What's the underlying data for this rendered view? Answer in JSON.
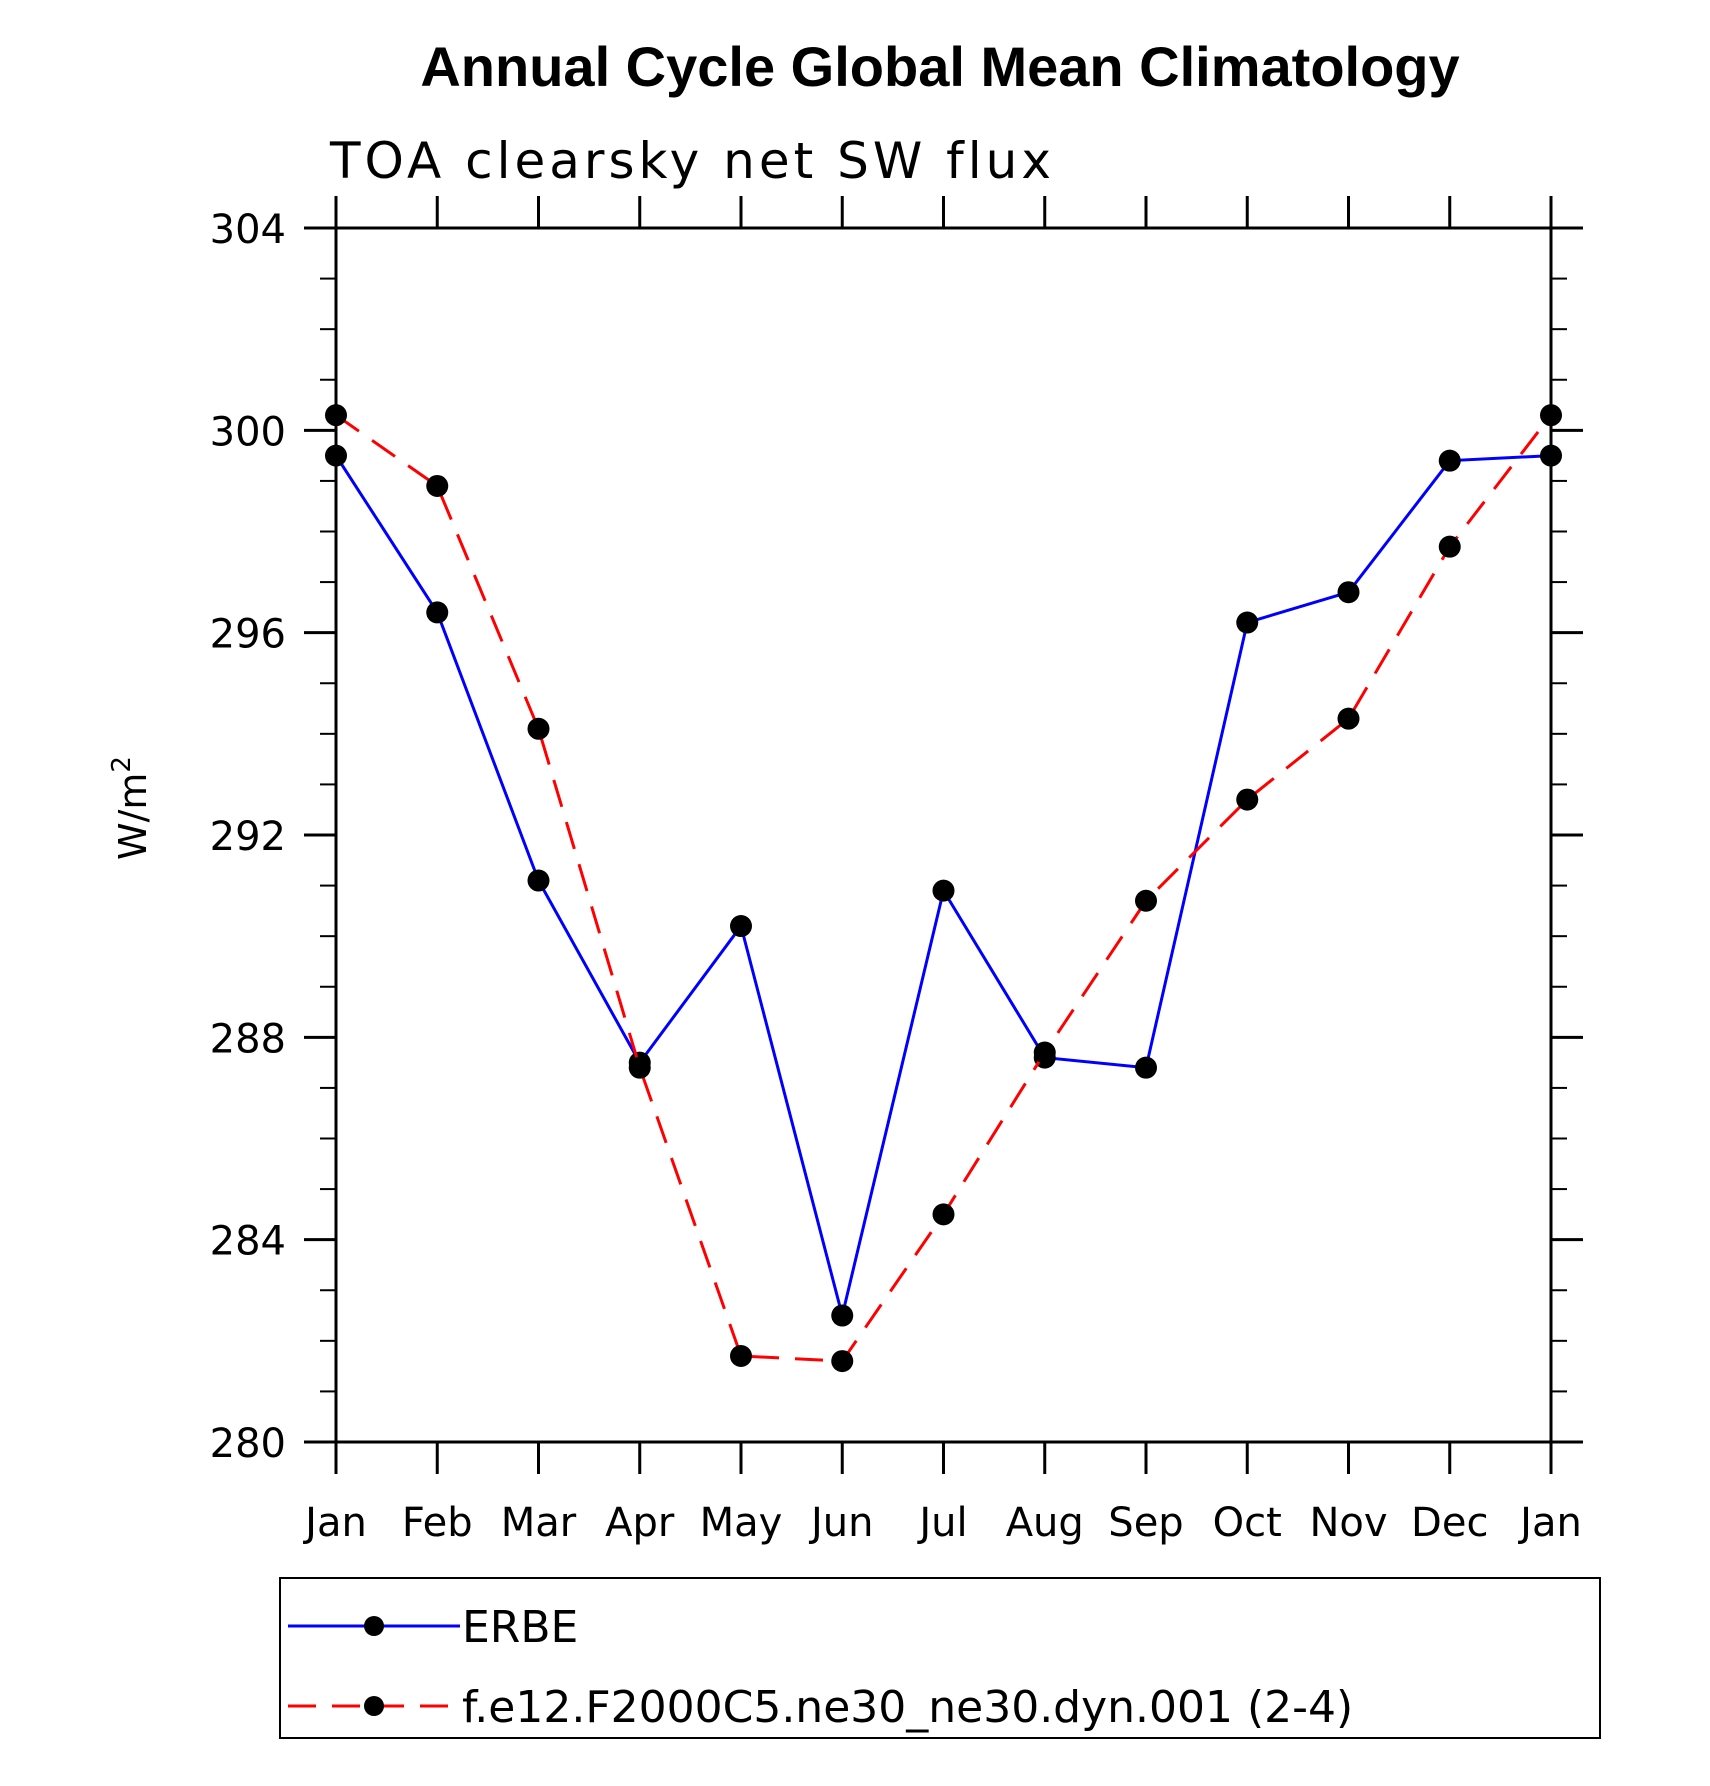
{
  "chart_data": {
    "type": "line",
    "title": "Annual Cycle Global Mean Climatology",
    "subtitle": "TOA clearsky net SW flux",
    "ylabel": "W/m",
    "ylabel_sup": "2",
    "xlabel": "",
    "categories": [
      "Jan",
      "Feb",
      "Mar",
      "Apr",
      "May",
      "Jun",
      "Jul",
      "Aug",
      "Sep",
      "Oct",
      "Nov",
      "Dec",
      "Jan"
    ],
    "ylim": [
      280,
      304
    ],
    "yticks": [
      280,
      284,
      288,
      292,
      296,
      300,
      304
    ],
    "y_minor_step": 1,
    "grid": false,
    "legend_position": "bottom",
    "series": [
      {
        "name": "ERBE",
        "color": "#0000ff",
        "dash": "solid",
        "marker": "filled-circle",
        "values": [
          299.5,
          296.4,
          291.1,
          287.5,
          290.2,
          282.5,
          290.9,
          287.6,
          287.4,
          296.2,
          296.8,
          299.4,
          299.5
        ]
      },
      {
        "name": "f.e12.F2000C5.ne30_ne30.dyn.001 (2-4)",
        "color": "#ff0000",
        "dash": "dashed",
        "marker": "filled-circle",
        "values": [
          300.3,
          298.9,
          294.1,
          287.4,
          281.7,
          281.6,
          284.5,
          287.7,
          290.7,
          292.7,
          294.3,
          297.7,
          300.3
        ]
      }
    ]
  }
}
